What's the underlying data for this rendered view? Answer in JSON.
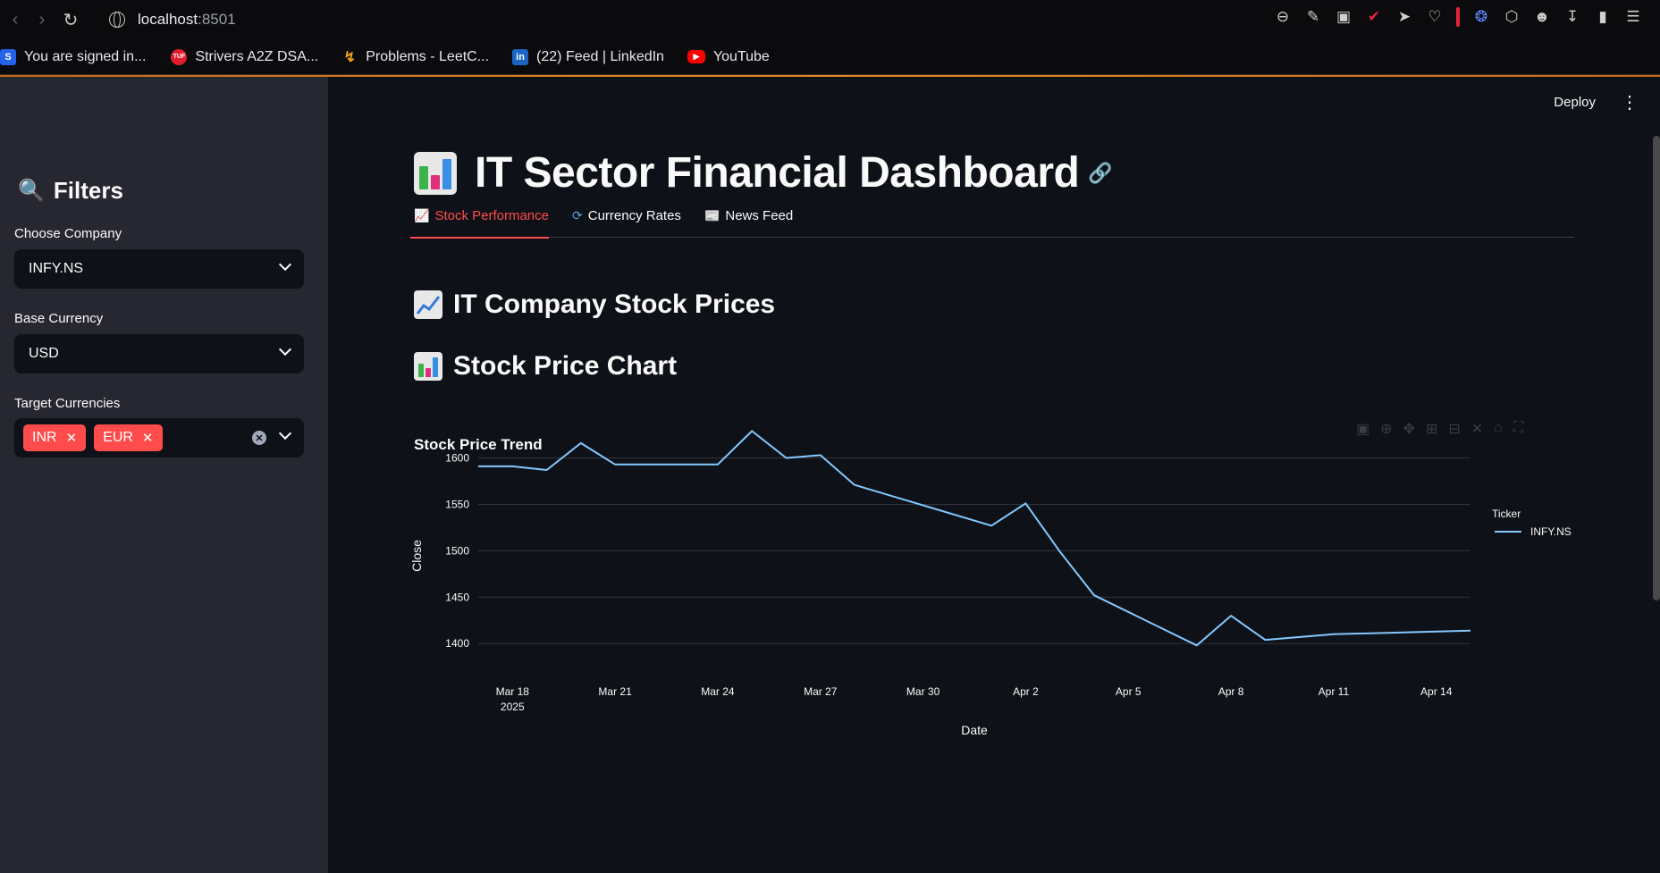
{
  "browser": {
    "url_host": "localhost",
    "url_port": ":8501",
    "bookmarks": [
      {
        "label": "You are signed in...",
        "icon": "s-icon"
      },
      {
        "label": "Strivers A2Z DSA...",
        "icon": "tuf-icon"
      },
      {
        "label": "Problems - LeetC...",
        "icon": "leetcode-icon"
      },
      {
        "label": "(22) Feed | LinkedIn",
        "icon": "linkedin-icon"
      },
      {
        "label": "YouTube",
        "icon": "youtube-icon"
      }
    ]
  },
  "sidebar": {
    "title": "Filters",
    "company_label": "Choose Company",
    "company_value": "INFY.NS",
    "base_label": "Base Currency",
    "base_value": "USD",
    "targets_label": "Target Currencies",
    "targets": [
      "INR",
      "EUR"
    ]
  },
  "header": {
    "deploy_label": "Deploy"
  },
  "main": {
    "title": "IT Sector Financial Dashboard",
    "tabs": [
      {
        "label": "Stock Performance",
        "active": true
      },
      {
        "label": "Currency Rates",
        "active": false
      },
      {
        "label": "News Feed",
        "active": false
      }
    ],
    "section1": "IT Company Stock Prices",
    "section2": "Stock Price Chart",
    "chart_title": "Stock Price Trend"
  },
  "colors": {
    "accent": "#ff4b4b",
    "series": "#83c9ff",
    "sidebar_bg": "#262730",
    "main_bg": "#0e1117"
  },
  "chart_data": {
    "type": "line",
    "title": "Stock Price Trend",
    "xlabel": "Date",
    "ylabel": "Close",
    "legend_title": "Ticker",
    "legend_position": "top-right",
    "grid": true,
    "ylim": [
      1380,
      1640
    ],
    "yticks": [
      1400,
      1450,
      1500,
      1550,
      1600
    ],
    "x_tick_dates": [
      "2025-03-18",
      "2025-03-21",
      "2025-03-24",
      "2025-03-27",
      "2025-03-30",
      "2025-04-02",
      "2025-04-05",
      "2025-04-08",
      "2025-04-11",
      "2025-04-14"
    ],
    "x_tick_labels": [
      "Mar 18",
      "Mar 21",
      "Mar 24",
      "Mar 27",
      "Mar 30",
      "Apr 2",
      "Apr 5",
      "Apr 8",
      "Apr 11",
      "Apr 14"
    ],
    "x_tick_sublabel": "2025",
    "xlim": [
      "2025-03-17",
      "2025-04-15"
    ],
    "series": [
      {
        "name": "INFY.NS",
        "x": [
          "2025-03-17",
          "2025-03-18",
          "2025-03-19",
          "2025-03-20",
          "2025-03-21",
          "2025-03-24",
          "2025-03-25",
          "2025-03-26",
          "2025-03-27",
          "2025-03-28",
          "2025-04-01",
          "2025-04-02",
          "2025-04-03",
          "2025-04-04",
          "2025-04-07",
          "2025-04-08",
          "2025-04-09",
          "2025-04-11",
          "2025-04-15"
        ],
        "y": [
          1591,
          1591,
          1587,
          1616,
          1593,
          1593,
          1629,
          1600,
          1603,
          1571,
          1527,
          1551,
          1499,
          1452,
          1398,
          1430,
          1404,
          1410,
          1414
        ]
      }
    ]
  }
}
